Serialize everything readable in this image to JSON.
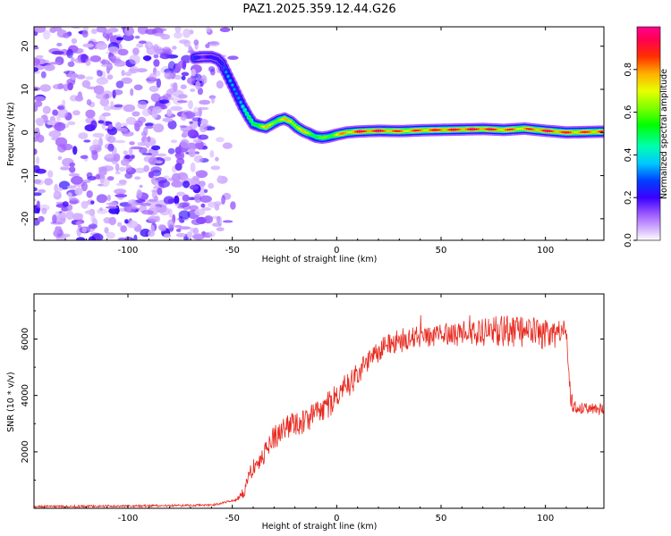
{
  "chart_data": [
    {
      "type": "heatmap",
      "title": "PAZ1.2025.359.12.44.G26",
      "xlabel": "Height of straight line (km)",
      "ylabel": "Frequency (Hz)",
      "xlim": [
        -145,
        128
      ],
      "ylim": [
        -25,
        24.5
      ],
      "xticks": [
        -100,
        -50,
        0,
        50,
        100
      ],
      "yticks": [
        -20,
        -10,
        0,
        10,
        20
      ],
      "noise_region_x": [
        -145,
        -48
      ],
      "ridge": {
        "x": [
          -68,
          -64,
          -60,
          -57,
          -55,
          -53,
          -50,
          -47,
          -45,
          -42,
          -40,
          -37,
          -34,
          -31,
          -28,
          -25,
          -22,
          -19,
          -16,
          -13,
          -10,
          -7,
          -4,
          0,
          5,
          10,
          20,
          30,
          40,
          50,
          60,
          70,
          80,
          90,
          100,
          110,
          120,
          128
        ],
        "y": [
          17.3,
          17.5,
          17.5,
          17.0,
          16.0,
          14.0,
          11.0,
          8.0,
          6.0,
          3.5,
          2.0,
          1.5,
          1.2,
          2.0,
          2.8,
          3.2,
          2.5,
          1.2,
          0.3,
          -0.3,
          -1.0,
          -1.2,
          -1.0,
          -0.5,
          0.0,
          0.2,
          0.4,
          0.3,
          0.5,
          0.6,
          0.7,
          0.8,
          0.6,
          0.9,
          0.4,
          0.0,
          0.1,
          0.2
        ],
        "amplitude": [
          0.3,
          0.2,
          0.22,
          0.28,
          0.32,
          0.36,
          0.38,
          0.42,
          0.48,
          0.55,
          0.62,
          0.7,
          0.78,
          0.74,
          0.72,
          0.78,
          0.82,
          0.8,
          0.76,
          0.72,
          0.62,
          0.6,
          0.66,
          0.78,
          0.86,
          0.96,
          0.98,
          0.88,
          0.9,
          0.95,
          0.96,
          0.97,
          0.9,
          0.86,
          0.97,
          0.92,
          0.9,
          0.95
        ]
      },
      "colorbar": {
        "label": "Normalized spectral amplitude",
        "range": [
          0,
          1
        ],
        "ticks": [
          0.0,
          0.2,
          0.4,
          0.6,
          0.8
        ]
      }
    },
    {
      "type": "line",
      "xlabel": "Height of straight line (km)",
      "ylabel": "SNR (10 * v/v)",
      "xlim": [
        -145,
        128
      ],
      "ylim": [
        0,
        7600
      ],
      "xticks": [
        -100,
        -50,
        0,
        50,
        100
      ],
      "yticks": [
        2000,
        4000,
        6000
      ],
      "color": "#e8281e",
      "trend": {
        "x": [
          -145,
          -100,
          -60,
          -48,
          -44,
          -42,
          -40,
          -38,
          -36,
          -34,
          -30,
          -25,
          -20,
          -15,
          -10,
          -5,
          0,
          5,
          10,
          15,
          20,
          25,
          30,
          35,
          40,
          50,
          60,
          70,
          80,
          90,
          100,
          105,
          110,
          111,
          112,
          113,
          115,
          120,
          128
        ],
        "y": [
          60,
          80,
          110,
          300,
          600,
          1100,
          1500,
          1600,
          1700,
          2100,
          2500,
          2800,
          2950,
          3100,
          3350,
          3600,
          3900,
          4300,
          4750,
          5200,
          5550,
          5800,
          5950,
          6050,
          6100,
          6150,
          6200,
          6250,
          6300,
          6250,
          6200,
          6180,
          6150,
          5200,
          4200,
          3600,
          3600,
          3550,
          3500
        ]
      },
      "noise": {
        "x": [
          -145,
          -48,
          -44,
          -30,
          0,
          30,
          50,
          80,
          100,
          112,
          113,
          128
        ],
        "amplitude": [
          40,
          40,
          250,
          450,
          450,
          400,
          400,
          550,
          550,
          550,
          220,
          220
        ]
      }
    }
  ]
}
